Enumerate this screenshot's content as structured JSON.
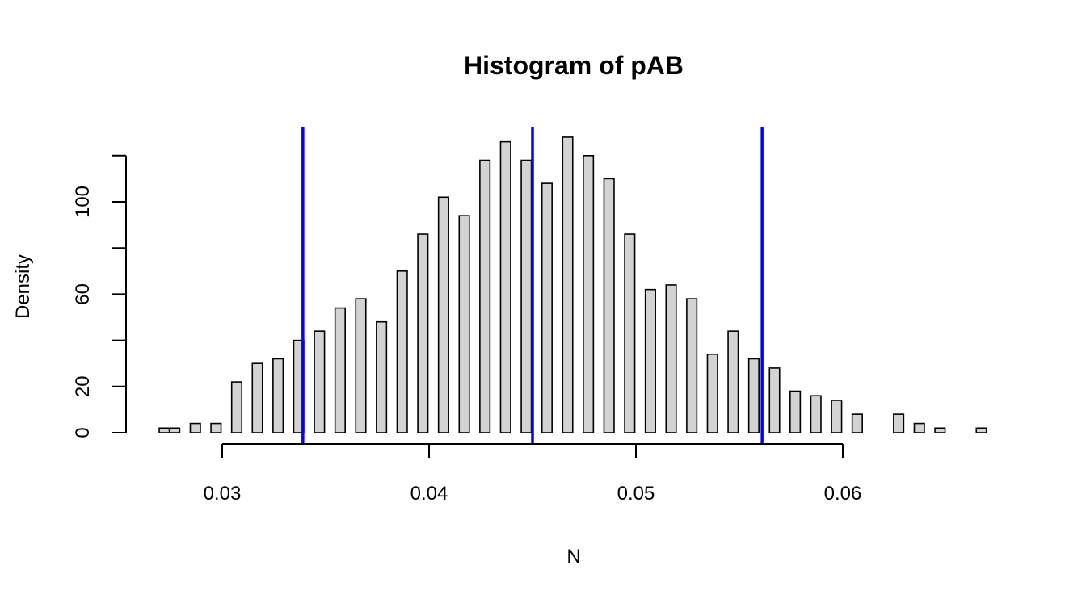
{
  "chart_data": {
    "type": "bar",
    "title": "Histogram of pAB",
    "xlabel": "N",
    "ylabel": "Density",
    "x_ticks": [
      0.03,
      0.04,
      0.05,
      0.06
    ],
    "x_tick_labels": [
      "0.03",
      "0.04",
      "0.05",
      "0.06"
    ],
    "y_ticks": [
      0,
      20,
      60,
      100
    ],
    "y_tick_labels": [
      "0",
      "20",
      "60",
      "100"
    ],
    "xlim": [
      0.0265,
      0.0675
    ],
    "ylim": [
      0,
      132
    ],
    "bins": [
      {
        "x": 0.0272,
        "density": 2
      },
      {
        "x": 0.0277,
        "density": 2
      },
      {
        "x": 0.0287,
        "density": 4
      },
      {
        "x": 0.0297,
        "density": 4
      },
      {
        "x": 0.0307,
        "density": 22
      },
      {
        "x": 0.0317,
        "density": 30
      },
      {
        "x": 0.0327,
        "density": 32
      },
      {
        "x": 0.0337,
        "density": 40
      },
      {
        "x": 0.0347,
        "density": 44
      },
      {
        "x": 0.0357,
        "density": 54
      },
      {
        "x": 0.0367,
        "density": 58
      },
      {
        "x": 0.0377,
        "density": 48
      },
      {
        "x": 0.0387,
        "density": 70
      },
      {
        "x": 0.0397,
        "density": 86
      },
      {
        "x": 0.0407,
        "density": 102
      },
      {
        "x": 0.0417,
        "density": 94
      },
      {
        "x": 0.0427,
        "density": 118
      },
      {
        "x": 0.0437,
        "density": 126
      },
      {
        "x": 0.0447,
        "density": 118
      },
      {
        "x": 0.0457,
        "density": 108
      },
      {
        "x": 0.0467,
        "density": 128
      },
      {
        "x": 0.0477,
        "density": 120
      },
      {
        "x": 0.0487,
        "density": 110
      },
      {
        "x": 0.0497,
        "density": 86
      },
      {
        "x": 0.0507,
        "density": 62
      },
      {
        "x": 0.0517,
        "density": 64
      },
      {
        "x": 0.0527,
        "density": 58
      },
      {
        "x": 0.0537,
        "density": 34
      },
      {
        "x": 0.0547,
        "density": 44
      },
      {
        "x": 0.0557,
        "density": 32
      },
      {
        "x": 0.0567,
        "density": 28
      },
      {
        "x": 0.0577,
        "density": 18
      },
      {
        "x": 0.0587,
        "density": 16
      },
      {
        "x": 0.0597,
        "density": 14
      },
      {
        "x": 0.0607,
        "density": 8
      },
      {
        "x": 0.0627,
        "density": 8
      },
      {
        "x": 0.0637,
        "density": 4
      },
      {
        "x": 0.0647,
        "density": 2
      },
      {
        "x": 0.0667,
        "density": 2
      }
    ],
    "vertical_lines": [
      {
        "x": 0.0339,
        "color": "#0000ff"
      },
      {
        "x": 0.045,
        "color": "#0000ff"
      },
      {
        "x": 0.0561,
        "color": "#0000ff"
      }
    ],
    "bar_fill": "#d3d3d3",
    "bar_stroke": "#000000",
    "grid": false
  }
}
